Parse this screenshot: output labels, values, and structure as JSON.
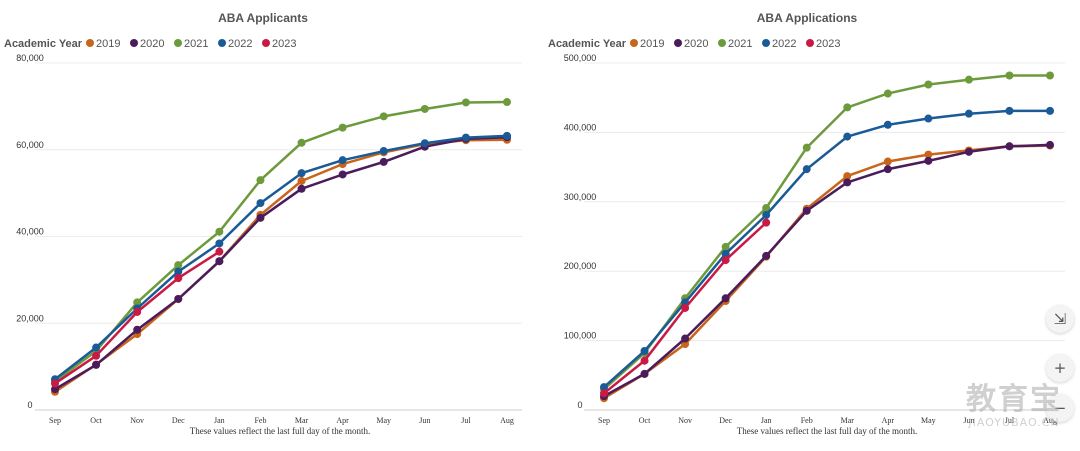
{
  "chart_data": [
    {
      "type": "line",
      "title": "ABA Applicants",
      "legend_title": "Academic Year",
      "legend_position": "top-left",
      "caption": "These values reflect the last full day of the month.",
      "categories": [
        "Sep",
        "Oct",
        "Nov",
        "Dec",
        "Jan",
        "Feb",
        "Mar",
        "Apr",
        "May",
        "Jun",
        "Jul",
        "Aug"
      ],
      "y_ticks": [
        "0",
        "20,000",
        "40,000",
        "60,000",
        "80,000"
      ],
      "ylim": [
        0,
        80000
      ],
      "grid": true,
      "series": [
        {
          "name": "2019",
          "color": "#c8651b",
          "values": [
            4200,
            10500,
            17500,
            25600,
            34300,
            45000,
            52800,
            56700,
            59400,
            61300,
            62200,
            62300
          ]
        },
        {
          "name": "2020",
          "color": "#4a1c5c",
          "values": [
            4800,
            10400,
            18500,
            25600,
            34300,
            44300,
            51000,
            54300,
            57200,
            60700,
            62500,
            62900
          ]
        },
        {
          "name": "2021",
          "color": "#6d9a3c",
          "values": [
            6600,
            13600,
            24800,
            33400,
            41100,
            53000,
            61600,
            65100,
            67700,
            69400,
            70900,
            71000
          ]
        },
        {
          "name": "2022",
          "color": "#1a5a96",
          "values": [
            7100,
            14400,
            23400,
            31900,
            38400,
            47700,
            54600,
            57600,
            59700,
            61500,
            62800,
            63200
          ]
        },
        {
          "name": "2023",
          "color": "#c81a44",
          "values": [
            6100,
            12500,
            22600,
            30400,
            36500,
            null,
            null,
            null,
            null,
            null,
            null,
            null
          ]
        }
      ]
    },
    {
      "type": "line",
      "title": "ABA Applications",
      "legend_title": "Academic Year",
      "legend_position": "top-left",
      "caption": "These values reflect the last full day of the month.",
      "categories": [
        "Sep",
        "Oct",
        "Nov",
        "Dec",
        "Jan",
        "Feb",
        "Mar",
        "Apr",
        "May",
        "Jun",
        "Jul",
        "Aug"
      ],
      "y_ticks": [
        "0",
        "100,000",
        "200,000",
        "300,000",
        "400,000",
        "500,000"
      ],
      "ylim": [
        0,
        500000
      ],
      "grid": true,
      "series": [
        {
          "name": "2019",
          "color": "#c8651b",
          "values": [
            17000,
            52000,
            95000,
            157000,
            221000,
            290000,
            337000,
            358000,
            368000,
            374000,
            380000,
            381000
          ]
        },
        {
          "name": "2020",
          "color": "#4a1c5c",
          "values": [
            20000,
            52000,
            103000,
            161000,
            222000,
            287000,
            328000,
            347000,
            359000,
            372000,
            380000,
            382000
          ]
        },
        {
          "name": "2021",
          "color": "#6d9a3c",
          "values": [
            30000,
            82000,
            161000,
            235000,
            291000,
            378000,
            436000,
            456000,
            469000,
            476000,
            482000,
            482000
          ]
        },
        {
          "name": "2022",
          "color": "#1a5a96",
          "values": [
            33000,
            85000,
            155000,
            225000,
            281000,
            347000,
            394000,
            411000,
            420000,
            427000,
            431000,
            431000
          ]
        },
        {
          "name": "2023",
          "color": "#c81a44",
          "values": [
            24000,
            71000,
            147000,
            216000,
            270000,
            null,
            null,
            null,
            null,
            null,
            null,
            null
          ]
        }
      ]
    }
  ],
  "controls": {
    "collapse_symbol": "⇲",
    "zoom_in_symbol": "+",
    "zoom_out_symbol": "−"
  },
  "watermark": {
    "text": "教育宝",
    "subtext": "JIAOYUBAO.CN"
  }
}
